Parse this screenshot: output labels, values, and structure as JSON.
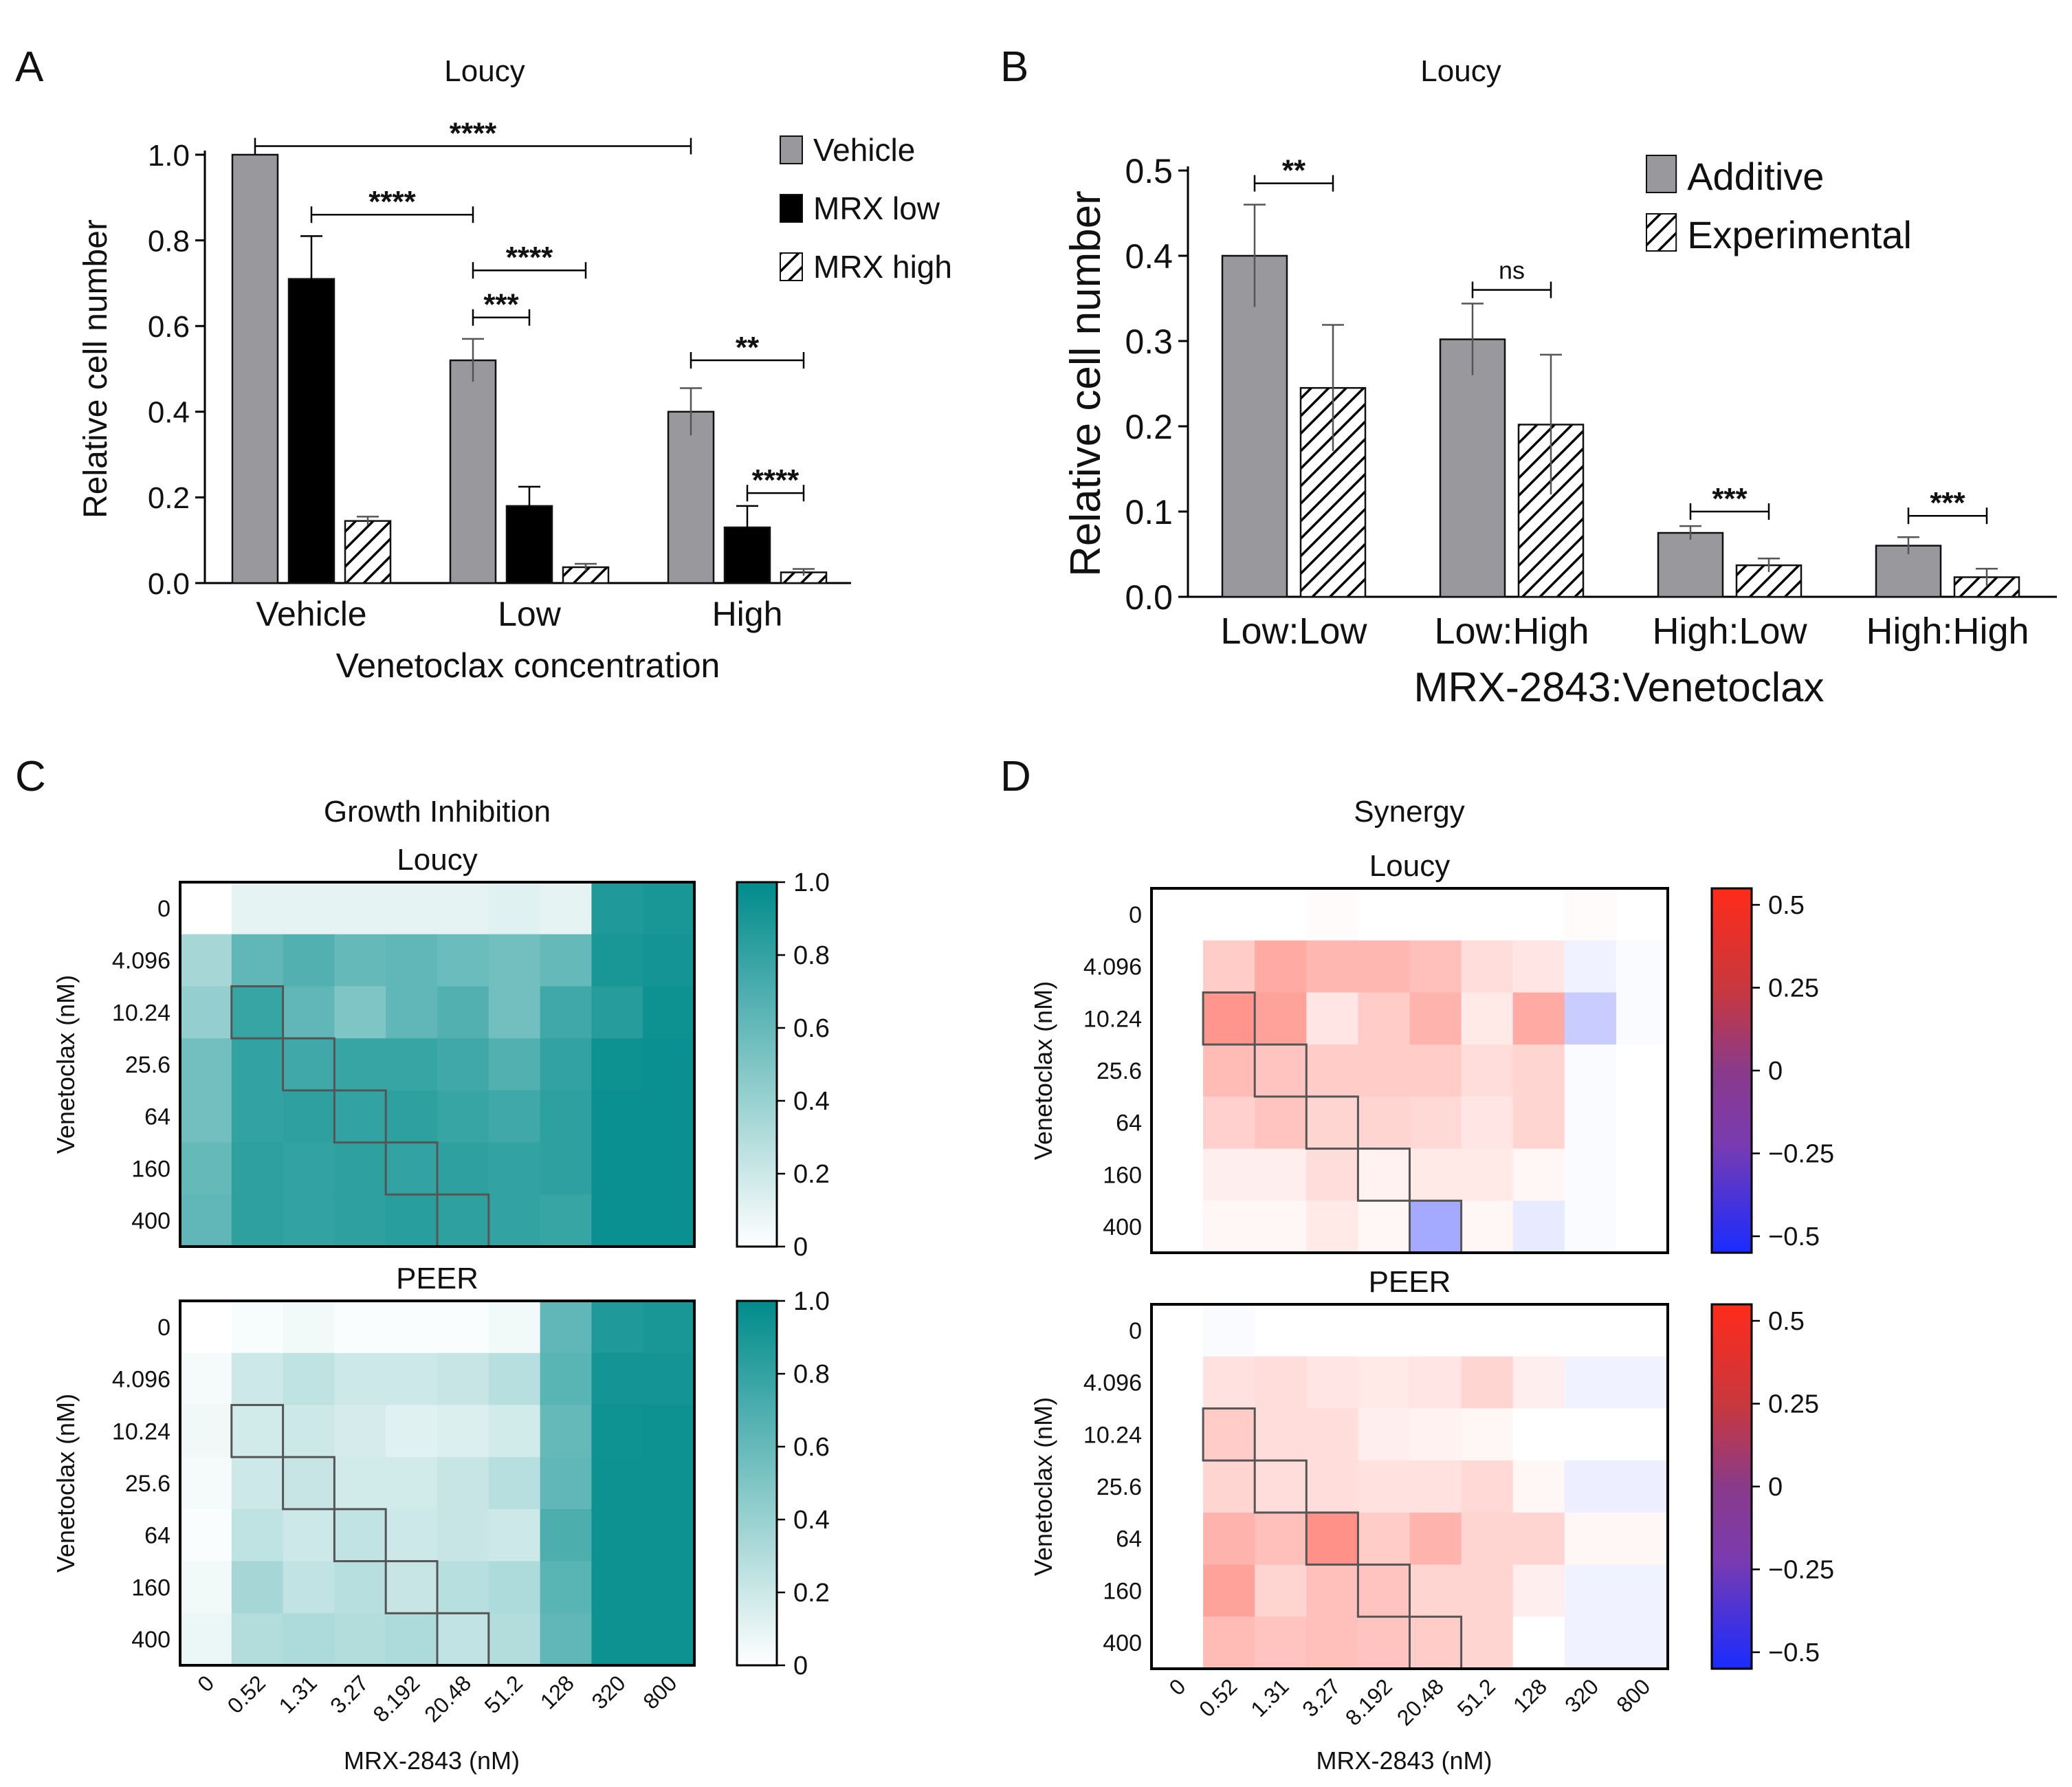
{
  "colors": {
    "gray": "#98989d",
    "black": "#000000",
    "teal": "#008b8b",
    "red": "#ff2b1a",
    "blue": "#1a2bff"
  },
  "panel_labels": [
    "A",
    "B",
    "C",
    "D"
  ],
  "chart_data": [
    {
      "id": "A",
      "type": "bar",
      "title": "Loucy",
      "xlabel": "Venetoclax concentration",
      "ylabel": "Relative cell number",
      "ylim": [
        0,
        1.0
      ],
      "yticks": [
        "0.0",
        "0.2",
        "0.4",
        "0.6",
        "0.8",
        "1.0"
      ],
      "categories": [
        "Vehicle",
        "Low",
        "High"
      ],
      "legend_position": "top-right",
      "series": [
        {
          "name": "Vehicle",
          "fill": "gray",
          "values": [
            1.0,
            0.52,
            0.4
          ],
          "errors": [
            0,
            0.05,
            0.055
          ]
        },
        {
          "name": "MRX low",
          "fill": "black",
          "values": [
            0.71,
            0.18,
            0.13
          ],
          "errors": [
            0.1,
            0.045,
            0.05
          ]
        },
        {
          "name": "MRX high",
          "fill": "hatch",
          "values": [
            0.145,
            0.037,
            0.025
          ],
          "errors": [
            0.01,
            0.008,
            0.008
          ]
        }
      ],
      "significance": [
        {
          "label": "****",
          "from": [
            0,
            0
          ],
          "to": [
            2,
            0
          ],
          "y": 1.02
        },
        {
          "label": "****",
          "from": [
            0,
            1
          ],
          "to": [
            1,
            0
          ],
          "y": 0.86
        },
        {
          "label": "****",
          "from": [
            1,
            0
          ],
          "to": [
            1,
            2
          ],
          "y": 0.73
        },
        {
          "label": "***",
          "from": [
            1,
            0
          ],
          "to": [
            1,
            1
          ],
          "y": 0.62
        },
        {
          "label": "**",
          "from": [
            2,
            0
          ],
          "to": [
            2,
            2
          ],
          "y": 0.52
        },
        {
          "label": "****",
          "from": [
            2,
            1
          ],
          "to": [
            2,
            2
          ],
          "y": 0.21
        }
      ]
    },
    {
      "id": "B",
      "type": "bar",
      "title": "Loucy",
      "xlabel": "MRX-2843:Venetoclax",
      "ylabel": "Relative cell number",
      "ylim": [
        0,
        0.5
      ],
      "yticks": [
        "0.0",
        "0.1",
        "0.2",
        "0.3",
        "0.4",
        "0.5"
      ],
      "categories": [
        "Low:Low",
        "Low:High",
        "High:Low",
        "High:High"
      ],
      "legend_position": "top-right",
      "series": [
        {
          "name": "Additive",
          "fill": "gray",
          "values": [
            0.4,
            0.302,
            0.075,
            0.06
          ],
          "errors": [
            0.06,
            0.042,
            0.008,
            0.01
          ]
        },
        {
          "name": "Experimental",
          "fill": "hatch",
          "values": [
            0.245,
            0.202,
            0.037,
            0.023
          ],
          "errors": [
            0.074,
            0.082,
            0.008,
            0.01
          ]
        }
      ],
      "significance": [
        {
          "label": "**",
          "cat": 0,
          "y": 0.485
        },
        {
          "label": "ns",
          "cat": 1,
          "y": 0.36
        },
        {
          "label": "***",
          "cat": 2,
          "y": 0.1
        },
        {
          "label": "***",
          "cat": 3,
          "y": 0.095
        }
      ]
    },
    {
      "id": "C",
      "type": "heatmap",
      "title": "Growth Inhibition",
      "xlabel": "MRX-2843 (nM)",
      "ylabel": "Venetoclax (nM)",
      "x": [
        "0",
        "0.52",
        "1.31",
        "3.27",
        "8.192",
        "20.48",
        "51.2",
        "128",
        "320",
        "800"
      ],
      "y": [
        "0",
        "4.096",
        "10.24",
        "25.6",
        "64",
        "160",
        "400"
      ],
      "colorbar": {
        "min": 0,
        "max": 1,
        "ticks": [
          "0",
          "0.2",
          "0.4",
          "0.6",
          "0.8",
          "1.0"
        ],
        "scheme": "white-teal"
      },
      "highlight_diagonal": [
        [
          2,
          1
        ],
        [
          3,
          2
        ],
        [
          4,
          3
        ],
        [
          5,
          4
        ],
        [
          6,
          5
        ]
      ],
      "subplots": [
        {
          "title": "Loucy",
          "values": [
            [
              0.0,
              0.1,
              0.1,
              0.1,
              0.1,
              0.1,
              0.12,
              0.1,
              0.88,
              0.9
            ],
            [
              0.35,
              0.62,
              0.68,
              0.6,
              0.62,
              0.58,
              0.55,
              0.6,
              0.9,
              0.92
            ],
            [
              0.42,
              0.78,
              0.62,
              0.5,
              0.62,
              0.68,
              0.55,
              0.75,
              0.85,
              0.95
            ],
            [
              0.55,
              0.8,
              0.75,
              0.78,
              0.78,
              0.75,
              0.68,
              0.8,
              0.95,
              0.96
            ],
            [
              0.55,
              0.8,
              0.82,
              0.8,
              0.82,
              0.78,
              0.75,
              0.82,
              0.96,
              0.96
            ],
            [
              0.6,
              0.82,
              0.8,
              0.82,
              0.8,
              0.82,
              0.8,
              0.82,
              0.96,
              0.96
            ],
            [
              0.62,
              0.82,
              0.8,
              0.82,
              0.84,
              0.82,
              0.8,
              0.78,
              0.96,
              0.96
            ]
          ]
        },
        {
          "title": "PEER",
          "values": [
            [
              0.0,
              0.03,
              0.05,
              0.02,
              0.02,
              0.02,
              0.05,
              0.62,
              0.88,
              0.9
            ],
            [
              0.04,
              0.2,
              0.25,
              0.2,
              0.2,
              0.22,
              0.28,
              0.65,
              0.92,
              0.92
            ],
            [
              0.06,
              0.18,
              0.2,
              0.16,
              0.12,
              0.14,
              0.18,
              0.6,
              0.94,
              0.95
            ],
            [
              0.04,
              0.2,
              0.22,
              0.18,
              0.18,
              0.22,
              0.28,
              0.62,
              0.95,
              0.95
            ],
            [
              0.02,
              0.25,
              0.2,
              0.24,
              0.2,
              0.22,
              0.2,
              0.7,
              0.95,
              0.95
            ],
            [
              0.05,
              0.35,
              0.24,
              0.28,
              0.22,
              0.28,
              0.32,
              0.65,
              0.95,
              0.95
            ],
            [
              0.08,
              0.3,
              0.32,
              0.3,
              0.32,
              0.24,
              0.3,
              0.62,
              0.95,
              0.95
            ]
          ]
        }
      ]
    },
    {
      "id": "D",
      "type": "heatmap",
      "title": "Synergy",
      "xlabel": "MRX-2843 (nM)",
      "ylabel": "Venetoclax (nM)",
      "x": [
        "0",
        "0.52",
        "1.31",
        "3.27",
        "8.192",
        "20.48",
        "51.2",
        "128",
        "320",
        "800"
      ],
      "y": [
        "0",
        "4.096",
        "10.24",
        "25.6",
        "64",
        "160",
        "400"
      ],
      "colorbar": {
        "min": -0.5,
        "max": 0.5,
        "ticks": [
          "0.5",
          "0.25",
          "0",
          "−0.25",
          "−0.5"
        ],
        "scheme": "blue-white-red"
      },
      "highlight_diagonal": [
        [
          2,
          1
        ],
        [
          3,
          2
        ],
        [
          4,
          3
        ],
        [
          5,
          4
        ],
        [
          6,
          5
        ]
      ],
      "subplots": [
        {
          "title": "Loucy",
          "values": [
            [
              0,
              0,
              0,
              0.01,
              0,
              0,
              0,
              0,
              0.01,
              0
            ],
            [
              0,
              0.12,
              0.2,
              0.17,
              0.17,
              0.15,
              0.08,
              0.06,
              -0.03,
              -0.01
            ],
            [
              0,
              0.25,
              0.22,
              0.06,
              0.12,
              0.18,
              0.05,
              0.2,
              -0.12,
              -0.01
            ],
            [
              0,
              0.16,
              0.14,
              0.12,
              0.12,
              0.12,
              0.08,
              0.1,
              -0.01,
              0
            ],
            [
              0,
              0.11,
              0.14,
              0.1,
              0.1,
              0.09,
              0.06,
              0.1,
              -0.01,
              0
            ],
            [
              0,
              0.04,
              0.04,
              0.08,
              0.03,
              0.05,
              0.05,
              0.02,
              -0.01,
              0
            ],
            [
              0,
              0.02,
              0.02,
              0.05,
              0.02,
              -0.2,
              0.02,
              -0.05,
              -0.01,
              0
            ]
          ]
        },
        {
          "title": "PEER",
          "values": [
            [
              0,
              -0.01,
              0,
              0,
              0,
              0,
              0,
              0,
              0,
              0
            ],
            [
              0,
              0.07,
              0.08,
              0.06,
              0.05,
              0.06,
              0.1,
              0.04,
              -0.03,
              -0.03
            ],
            [
              0,
              0.12,
              0.08,
              0.08,
              0.04,
              0.03,
              0.02,
              0,
              0,
              0
            ],
            [
              0,
              0.1,
              0.08,
              0.08,
              0.07,
              0.07,
              0.09,
              0.02,
              -0.04,
              -0.04
            ],
            [
              0,
              0.18,
              0.15,
              0.26,
              0.12,
              0.18,
              0.1,
              0.1,
              0.02,
              0.02
            ],
            [
              0,
              0.22,
              0.1,
              0.15,
              0.14,
              0.1,
              0.1,
              0.04,
              -0.03,
              -0.03
            ],
            [
              0,
              0.16,
              0.14,
              0.15,
              0.14,
              0.12,
              0.1,
              0,
              -0.03,
              -0.03
            ]
          ]
        }
      ]
    }
  ]
}
